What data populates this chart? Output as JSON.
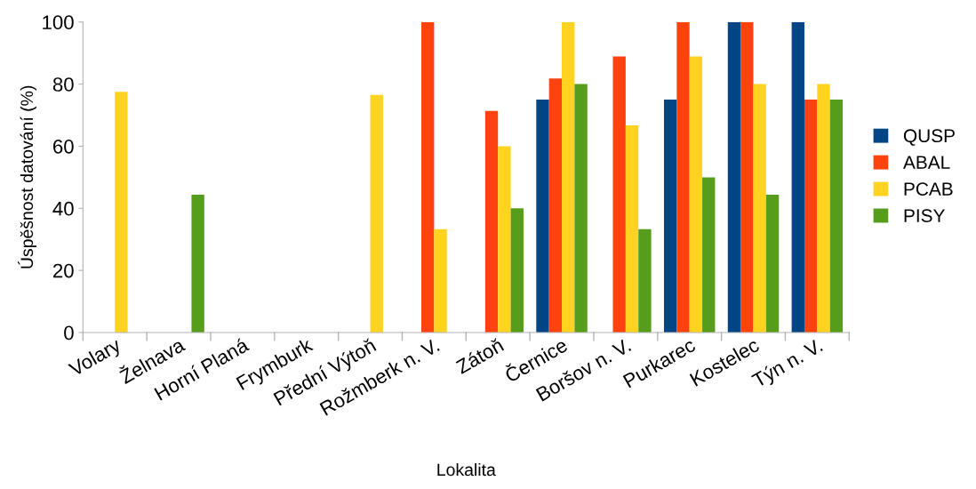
{
  "chart_data": {
    "type": "bar",
    "xlabel": "Lokalita",
    "ylabel": "Úspěšnost datování (%)",
    "categories": [
      "Volary",
      "Želnava",
      "Horní Planá",
      "Frymburk",
      "Přední Výtoň",
      "Rožmberk n. V.",
      "Zátoň",
      "Černice",
      "Boršov n. V.",
      "Purkarec",
      "Kostelec",
      "Týn n. V."
    ],
    "series": [
      {
        "name": "QUSP",
        "color": "#004586",
        "values": [
          null,
          null,
          null,
          null,
          null,
          null,
          null,
          75,
          null,
          75,
          100,
          100
        ]
      },
      {
        "name": "ABAL",
        "color": "#ff420e",
        "values": [
          null,
          null,
          null,
          null,
          null,
          100,
          71.4,
          81.8,
          88.9,
          100,
          100,
          75
        ]
      },
      {
        "name": "PCAB",
        "color": "#ffd320",
        "values": [
          77.5,
          null,
          null,
          null,
          76.5,
          33.3,
          60,
          100,
          66.7,
          88.9,
          80,
          80
        ]
      },
      {
        "name": "PISY",
        "color": "#579d1c",
        "values": [
          null,
          44.4,
          null,
          null,
          null,
          null,
          40,
          80,
          33.3,
          50,
          44.4,
          75
        ]
      }
    ],
    "ylim": [
      0,
      100
    ],
    "yticks": [
      0,
      20,
      40,
      60,
      80,
      100
    ],
    "grid": false,
    "legend": "right"
  }
}
